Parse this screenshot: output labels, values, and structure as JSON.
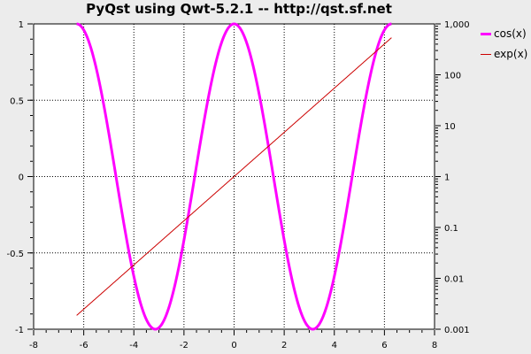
{
  "chart_data": {
    "type": "line",
    "title": "PyQst using Qwt-5.2.1 -- http://qst.sf.net",
    "xlabel": "",
    "ylabel": "",
    "xlim": [
      -8,
      8
    ],
    "ylim": [
      -1,
      1
    ],
    "y2lim": [
      0.001,
      1000
    ],
    "y2_scale": "log",
    "x_ticks": [
      "-8",
      "-6",
      "-4",
      "-2",
      "0",
      "2",
      "4",
      "6",
      "8"
    ],
    "y_ticks": [
      "-1",
      "-0.5",
      "0",
      "0.5",
      "1"
    ],
    "y2_ticks": [
      "0.001",
      "0.01",
      "0.1",
      "1",
      "10",
      "100",
      "1,000"
    ],
    "grid": true,
    "legend_position": "right",
    "series": [
      {
        "name": "cos(x)",
        "axis": "left",
        "color": "#ff00ff",
        "function": "cos",
        "x_range": [
          -6.283,
          6.283
        ]
      },
      {
        "name": "exp(x)",
        "axis": "right",
        "color": "#cc0000",
        "function": "exp",
        "x_range": [
          -6.283,
          6.283
        ]
      }
    ]
  }
}
